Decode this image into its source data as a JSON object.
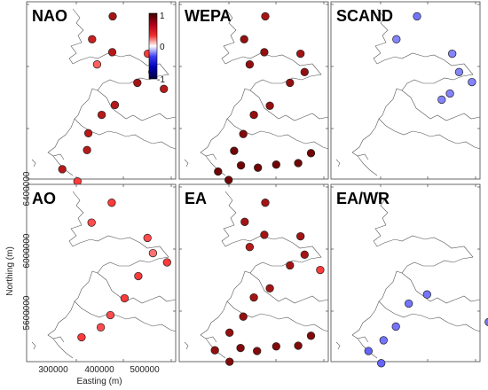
{
  "chart_data": {
    "type": "scatter",
    "xlabel": "Easting (m)",
    "ylabel": "Northing (m)",
    "x_ticks": [
      "300000",
      "400000",
      "500000"
    ],
    "y_ticks": [
      "5600000",
      "6000000",
      "6400000"
    ],
    "colorbar": {
      "ticks": [
        "1",
        "0",
        "-1"
      ],
      "range": [
        -1,
        1
      ]
    },
    "panels": [
      {
        "title": "NAO",
        "stations": [
          {
            "x": 378000,
            "y": 6405000,
            "r": 0.8
          },
          {
            "x": 333000,
            "y": 6255000,
            "r": 0.7
          },
          {
            "x": 377000,
            "y": 6170000,
            "r": 0.75
          },
          {
            "x": 455000,
            "y": 6160000,
            "r": 0.55
          },
          {
            "x": 344000,
            "y": 6090000,
            "r": 0.45
          },
          {
            "x": 465000,
            "y": 6040000,
            "r": 0.7
          },
          {
            "x": 432000,
            "y": 5970000,
            "r": 0.8
          },
          {
            "x": 490000,
            "y": 5930000,
            "r": 0.75
          },
          {
            "x": 550000,
            "y": 5890000,
            "r": 0.45
          },
          {
            "x": 383000,
            "y": 5825000,
            "r": 0.75
          },
          {
            "x": 354000,
            "y": 5760000,
            "r": 0.75
          },
          {
            "x": 325000,
            "y": 5640000,
            "r": 0.75
          },
          {
            "x": 322000,
            "y": 5530000,
            "r": 0.75
          },
          {
            "x": 268000,
            "y": 5405000,
            "r": 0.75
          },
          {
            "x": 301000,
            "y": 5325000,
            "r": 0.55
          }
        ]
      },
      {
        "title": "WEPA",
        "stations": [
          {
            "x": 378000,
            "y": 6405000,
            "r": 0.8
          },
          {
            "x": 332000,
            "y": 6255000,
            "r": 0.85
          },
          {
            "x": 376000,
            "y": 6170000,
            "r": 0.85
          },
          {
            "x": 455000,
            "y": 6160000,
            "r": 0.8
          },
          {
            "x": 344000,
            "y": 6090000,
            "r": 0.85
          },
          {
            "x": 464000,
            "y": 6040000,
            "r": 0.85
          },
          {
            "x": 432000,
            "y": 5970000,
            "r": 0.85
          },
          {
            "x": 388000,
            "y": 5820000,
            "r": 0.85
          },
          {
            "x": 353000,
            "y": 5760000,
            "r": 0.85
          },
          {
            "x": 330000,
            "y": 5635000,
            "r": 0.9
          },
          {
            "x": 310000,
            "y": 5525000,
            "r": 0.95
          },
          {
            "x": 275000,
            "y": 5390000,
            "r": 0.95
          },
          {
            "x": 298000,
            "y": 5335000,
            "r": 0.95
          },
          {
            "x": 325000,
            "y": 5430000,
            "r": 0.95
          },
          {
            "x": 362000,
            "y": 5415000,
            "r": 0.95
          },
          {
            "x": 402000,
            "y": 5435000,
            "r": 0.95
          },
          {
            "x": 450000,
            "y": 5445000,
            "r": 0.95
          },
          {
            "x": 478000,
            "y": 5510000,
            "r": 0.95
          },
          {
            "x": 530000,
            "y": 5645000,
            "r": 0.95
          },
          {
            "x": 578000,
            "y": 5650000,
            "r": 0.95
          }
        ]
      },
      {
        "title": "SCAND",
        "stations": [
          {
            "x": 333000,
            "y": 6255000,
            "r": -0.4
          },
          {
            "x": 378000,
            "y": 6405000,
            "r": -0.45
          },
          {
            "x": 455000,
            "y": 6160000,
            "r": -0.4
          },
          {
            "x": 470000,
            "y": 6040000,
            "r": -0.4
          },
          {
            "x": 498000,
            "y": 5975000,
            "r": -0.4
          },
          {
            "x": 450000,
            "y": 5900000,
            "r": -0.4
          },
          {
            "x": 432000,
            "y": 5860000,
            "r": -0.4
          }
        ]
      },
      {
        "title": "AO",
        "stations": [
          {
            "x": 376000,
            "y": 6380000,
            "r": 0.55
          },
          {
            "x": 332000,
            "y": 6250000,
            "r": 0.5
          },
          {
            "x": 454000,
            "y": 6150000,
            "r": 0.5
          },
          {
            "x": 466000,
            "y": 6050000,
            "r": 0.4
          },
          {
            "x": 497000,
            "y": 5990000,
            "r": 0.55
          },
          {
            "x": 434000,
            "y": 5900000,
            "r": 0.55
          },
          {
            "x": 404000,
            "y": 5755000,
            "r": 0.55
          },
          {
            "x": 373000,
            "y": 5645000,
            "r": 0.5
          },
          {
            "x": 352000,
            "y": 5565000,
            "r": 0.5
          },
          {
            "x": 310000,
            "y": 5500000,
            "r": 0.55
          }
        ]
      },
      {
        "title": "EA",
        "stations": [
          {
            "x": 378000,
            "y": 6380000,
            "r": 0.8
          },
          {
            "x": 333000,
            "y": 6255000,
            "r": 0.8
          },
          {
            "x": 376000,
            "y": 6170000,
            "r": 0.8
          },
          {
            "x": 455000,
            "y": 6160000,
            "r": 0.8
          },
          {
            "x": 344000,
            "y": 6090000,
            "r": 0.75
          },
          {
            "x": 464000,
            "y": 6040000,
            "r": 0.8
          },
          {
            "x": 432000,
            "y": 5970000,
            "r": 0.8
          },
          {
            "x": 498000,
            "y": 5940000,
            "r": 0.55
          },
          {
            "x": 388000,
            "y": 5820000,
            "r": 0.8
          },
          {
            "x": 353000,
            "y": 5760000,
            "r": 0.8
          },
          {
            "x": 330000,
            "y": 5635000,
            "r": 0.85
          },
          {
            "x": 300000,
            "y": 5530000,
            "r": 0.85
          },
          {
            "x": 268000,
            "y": 5415000,
            "r": 0.85
          },
          {
            "x": 300000,
            "y": 5340000,
            "r": 0.9
          },
          {
            "x": 324000,
            "y": 5430000,
            "r": 0.9
          },
          {
            "x": 360000,
            "y": 5410000,
            "r": 0.9
          },
          {
            "x": 402000,
            "y": 5440000,
            "r": 0.9
          },
          {
            "x": 450000,
            "y": 5445000,
            "r": 0.9
          },
          {
            "x": 478000,
            "y": 5510000,
            "r": 0.9
          },
          {
            "x": 530000,
            "y": 5645000,
            "r": 0.85
          },
          {
            "x": 578000,
            "y": 5650000,
            "r": 0.85
          }
        ]
      },
      {
        "title": "EA/WR",
        "stations": [
          {
            "x": 300000,
            "y": 5330000,
            "r": -0.5
          },
          {
            "x": 272000,
            "y": 5410000,
            "r": -0.5
          },
          {
            "x": 305000,
            "y": 5480000,
            "r": -0.45
          },
          {
            "x": 332000,
            "y": 5570000,
            "r": -0.45
          },
          {
            "x": 360000,
            "y": 5720000,
            "r": -0.45
          },
          {
            "x": 400000,
            "y": 5780000,
            "r": -0.45
          },
          {
            "x": 535000,
            "y": 5600000,
            "r": -0.45
          }
        ]
      }
    ]
  }
}
